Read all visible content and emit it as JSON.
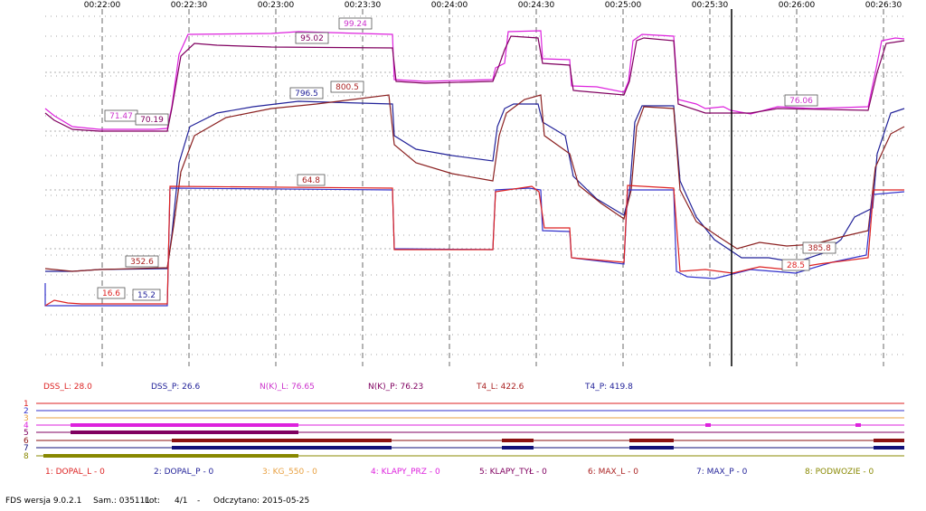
{
  "chart_data": {
    "type": "line",
    "time_ticks": [
      "00:22:00",
      "00:22:30",
      "00:23:00",
      "00:23:30",
      "00:24:00",
      "00:24:30",
      "00:25:00",
      "00:25:30",
      "00:26:00",
      "00:26:30"
    ],
    "cursor_time": "00:25:34",
    "grid": true,
    "series": [
      {
        "color": "#dd22dd",
        "values": [
          [
            0,
            0.74
          ],
          [
            0.2,
            0.85
          ],
          [
            0.35,
            0.94
          ],
          [
            0.45,
            0.97
          ],
          [
            0.47,
            0.99
          ],
          [
            1.27,
            0.99
          ],
          [
            1.3,
            0.52
          ],
          [
            1.45,
            0.52
          ],
          [
            2.4,
            0.53
          ],
          [
            2.7,
            0.53
          ],
          [
            3.85,
            0.53
          ],
          [
            3.9,
            0.61
          ],
          [
            4.0,
            0.64
          ],
          [
            4.1,
            0.62
          ],
          [
            4.1,
            0.14
          ],
          [
            5.0,
            0.12
          ],
          [
            6.1,
            0.12
          ],
          [
            6.2,
            0.14
          ],
          [
            6.3,
            0.1
          ],
          [
            7.0,
            0.1
          ],
          [
            7.4,
            0.09
          ],
          [
            8.4,
            0.08
          ],
          [
            8.7,
            0.12
          ],
          [
            9.1,
            0.26
          ],
          [
            9.3,
            0.3
          ],
          [
            9.4,
            0.38
          ],
          [
            9.5,
            0.52
          ],
          [
            9.55,
            0.62
          ],
          [
            9.7,
            0.67
          ],
          [
            10.0,
            0.66
          ],
          [
            11.0,
            0.12
          ],
          [
            11.25,
            0.14
          ],
          [
            11.3,
            0.13
          ],
          [
            11.7,
            0.12
          ],
          [
            12.5,
            0.12
          ],
          [
            13.0,
            0.07
          ],
          [
            13.5,
            0.06
          ],
          [
            14.6,
            0.06
          ],
          [
            16.3,
            0.07
          ],
          [
            18.0,
            0.11
          ],
          [
            18.3,
            0.08
          ],
          [
            18.9,
            0.13
          ],
          [
            19.1,
            0.09
          ],
          [
            19.5,
            0.06
          ],
          [
            20.2,
            0.07
          ],
          [
            20.8,
            0.05
          ],
          [
            21.2,
            0.05
          ],
          [
            22.4,
            0.07
          ],
          [
            22.9,
            0.07
          ],
          [
            23.4,
            0.01
          ],
          [
            24.1,
            0.01
          ],
          [
            25.2,
            0.01
          ],
          [
            26.0,
            0.01
          ],
          [
            26.9,
            0.01
          ],
          [
            27.3,
            0.01
          ],
          [
            27.8,
            0.03
          ],
          [
            28.3,
            0.0
          ]
        ]
      },
      {
        "color": "#800060",
        "values": [
          [
            0,
            0.75
          ],
          [
            0.3,
            0.82
          ],
          [
            0.6,
            0.86
          ],
          [
            1.0,
            0.86
          ],
          [
            1.4,
            0.86
          ],
          [
            2.4,
            0.86
          ],
          [
            3.5,
            0.86
          ],
          [
            3.85,
            0.86
          ],
          [
            4.1,
            0.9
          ],
          [
            4.4,
            0.96
          ],
          [
            4.7,
            1.0
          ],
          [
            6.0,
            1.0
          ],
          [
            8.6,
            1.0
          ],
          [
            9.5,
            1.0
          ],
          [
            10.0,
            1.0
          ],
          [
            10.3,
            1.0
          ],
          [
            10.5,
            1.0
          ],
          [
            10.6,
            1.0
          ],
          [
            10.8,
            1.0
          ]
        ]
      },
      {
        "color": "#222299",
        "values": [
          [
            0,
            0.6
          ],
          [
            1.0,
            0.6
          ],
          [
            1.5,
            0.6
          ],
          [
            3.9,
            0.6
          ],
          [
            4.1,
            0.72
          ],
          [
            4.3,
            0.84
          ],
          [
            4.7,
            0.9
          ],
          [
            5.5,
            0.93
          ],
          [
            6.5,
            0.95
          ],
          [
            7.4,
            0.96
          ],
          [
            8.6,
            0.96
          ],
          [
            8.7,
            0.82
          ],
          [
            9.2,
            0.71
          ],
          [
            10.0,
            0.68
          ],
          [
            10.5,
            0.66
          ],
          [
            10.8,
            0.64
          ],
          [
            10.9,
            0.92
          ],
          [
            11.3,
            0.97
          ],
          [
            11.5,
            0.96
          ],
          [
            11.7,
            0.86
          ],
          [
            12.1,
            0.75
          ],
          [
            12.5,
            0.66
          ],
          [
            13.0,
            0.58
          ],
          [
            13.5,
            0.55
          ],
          [
            13.7,
            0.52
          ],
          [
            13.9,
            0.54
          ],
          [
            14.0,
            0.97
          ],
          [
            14.3,
            0.98
          ],
          [
            14.6,
            0.97
          ],
          [
            14.7,
            0.9
          ],
          [
            15.1,
            0.78
          ],
          [
            15.5,
            0.7
          ],
          [
            15.9,
            0.62
          ],
          [
            16.3,
            0.59
          ],
          [
            16.7,
            0.56
          ],
          [
            17.1,
            0.52
          ],
          [
            17.5,
            0.49
          ],
          [
            17.9,
            0.47
          ],
          [
            18.5,
            0.48
          ],
          [
            19.5,
            0.5
          ],
          [
            19.9,
            0.57
          ],
          [
            20.0,
            0.82
          ],
          [
            20.3,
            0.9
          ]
        ]
      },
      {
        "color": "#aa2222",
        "values": [
          [
            0,
            0.6
          ],
          [
            1.5,
            0.6
          ],
          [
            3.9,
            0.6
          ],
          [
            4.2,
            0.75
          ],
          [
            4.6,
            0.85
          ],
          [
            5.0,
            0.88
          ],
          [
            5.6,
            0.92
          ],
          [
            6.6,
            0.94
          ],
          [
            7.6,
            0.98
          ],
          [
            8.6,
            0.99
          ],
          [
            8.7,
            0.8
          ],
          [
            9.3,
            0.7
          ],
          [
            10.0,
            0.65
          ],
          [
            10.7,
            0.63
          ],
          [
            10.9,
            0.9
          ],
          [
            11.3,
            0.96
          ],
          [
            11.8,
            1.0
          ],
          [
            12.0,
            0.88
          ],
          [
            12.5,
            0.75
          ],
          [
            13.0,
            0.63
          ],
          [
            13.5,
            0.57
          ],
          [
            13.8,
            0.55
          ],
          [
            14.0,
            0.97
          ],
          [
            14.6,
            0.98
          ],
          [
            14.8,
            0.88
          ],
          [
            15.3,
            0.76
          ],
          [
            15.8,
            0.66
          ],
          [
            16.3,
            0.6
          ],
          [
            16.7,
            0.57
          ],
          [
            17.2,
            0.54
          ],
          [
            17.6,
            0.52
          ],
          [
            18.0,
            0.53
          ],
          [
            18.6,
            0.52
          ],
          [
            19.5,
            0.54
          ],
          [
            19.9,
            0.62
          ],
          [
            20.2,
            0.76
          ],
          [
            20.3,
            0.8
          ]
        ]
      }
    ]
  },
  "value_labels": [
    {
      "text": "99.24",
      "color": "#cc33cc"
    },
    {
      "text": "95.02",
      "color": "#800060"
    },
    {
      "text": "796.5",
      "color": "#222299"
    },
    {
      "text": "800.5",
      "color": "#aa2222"
    },
    {
      "text": "71.47",
      "color": "#cc33cc"
    },
    {
      "text": "70.19",
      "color": "#800060"
    },
    {
      "text": "76.06",
      "color": "#cc33cc"
    },
    {
      "text": "64.8",
      "color": "#aa2222"
    },
    {
      "text": "352.6",
      "color": "#aa2222"
    },
    {
      "text": "16.6",
      "color": "#dd2222"
    },
    {
      "text": "15.2",
      "color": "#222299"
    },
    {
      "text": "385.8",
      "color": "#aa2222"
    },
    {
      "text": "28.5",
      "color": "#dd2222"
    }
  ],
  "readouts": [
    {
      "label": "DSS_L:",
      "value": "28.0",
      "color": "#dd2222"
    },
    {
      "label": "DSS_P:",
      "value": "26.6",
      "color": "#222299"
    },
    {
      "label": "N(K)_L:",
      "value": "76.65",
      "color": "#cc33cc"
    },
    {
      "label": "N(K)_P:",
      "value": "76.23",
      "color": "#800060"
    },
    {
      "label": "T4_L:",
      "value": "422.6",
      "color": "#aa2222"
    },
    {
      "label": "T4_P:",
      "value": "419.8",
      "color": "#222299"
    }
  ],
  "binary_channels": [
    {
      "num": "1",
      "color": "#dd2222"
    },
    {
      "num": "2",
      "color": "#3333cc"
    },
    {
      "num": "3",
      "color": "#e8a040"
    },
    {
      "num": "4",
      "color": "#dd22dd"
    },
    {
      "num": "5",
      "color": "#800060"
    },
    {
      "num": "6",
      "color": "#8b1111"
    },
    {
      "num": "7",
      "color": "#11117a"
    },
    {
      "num": "8",
      "color": "#888800"
    }
  ],
  "legend": [
    {
      "text": "1: DOPAL_L - 0",
      "color": "#dd2222"
    },
    {
      "text": "2: DOPAL_P - 0",
      "color": "#222299"
    },
    {
      "text": "3: KG_550 - 0",
      "color": "#e8a040"
    },
    {
      "text": "4: KLAPY_PRZ - 0",
      "color": "#dd22dd"
    },
    {
      "text": "5: KLAPY_TYŁ - 0",
      "color": "#800060"
    },
    {
      "text": "6: MAX_L - 0",
      "color": "#aa2222"
    },
    {
      "text": "7: MAX_P - 0",
      "color": "#222299"
    },
    {
      "text": "8: PODWOZIE - 0",
      "color": "#888800"
    }
  ],
  "footer": {
    "software": "FDS wersja 9.0.2.1",
    "sam": "Sam.: 035111",
    "lot_label": "Lot:",
    "lot_value": "4/1",
    "dash": "-",
    "read": "Odczytano: 2015-05-25"
  }
}
